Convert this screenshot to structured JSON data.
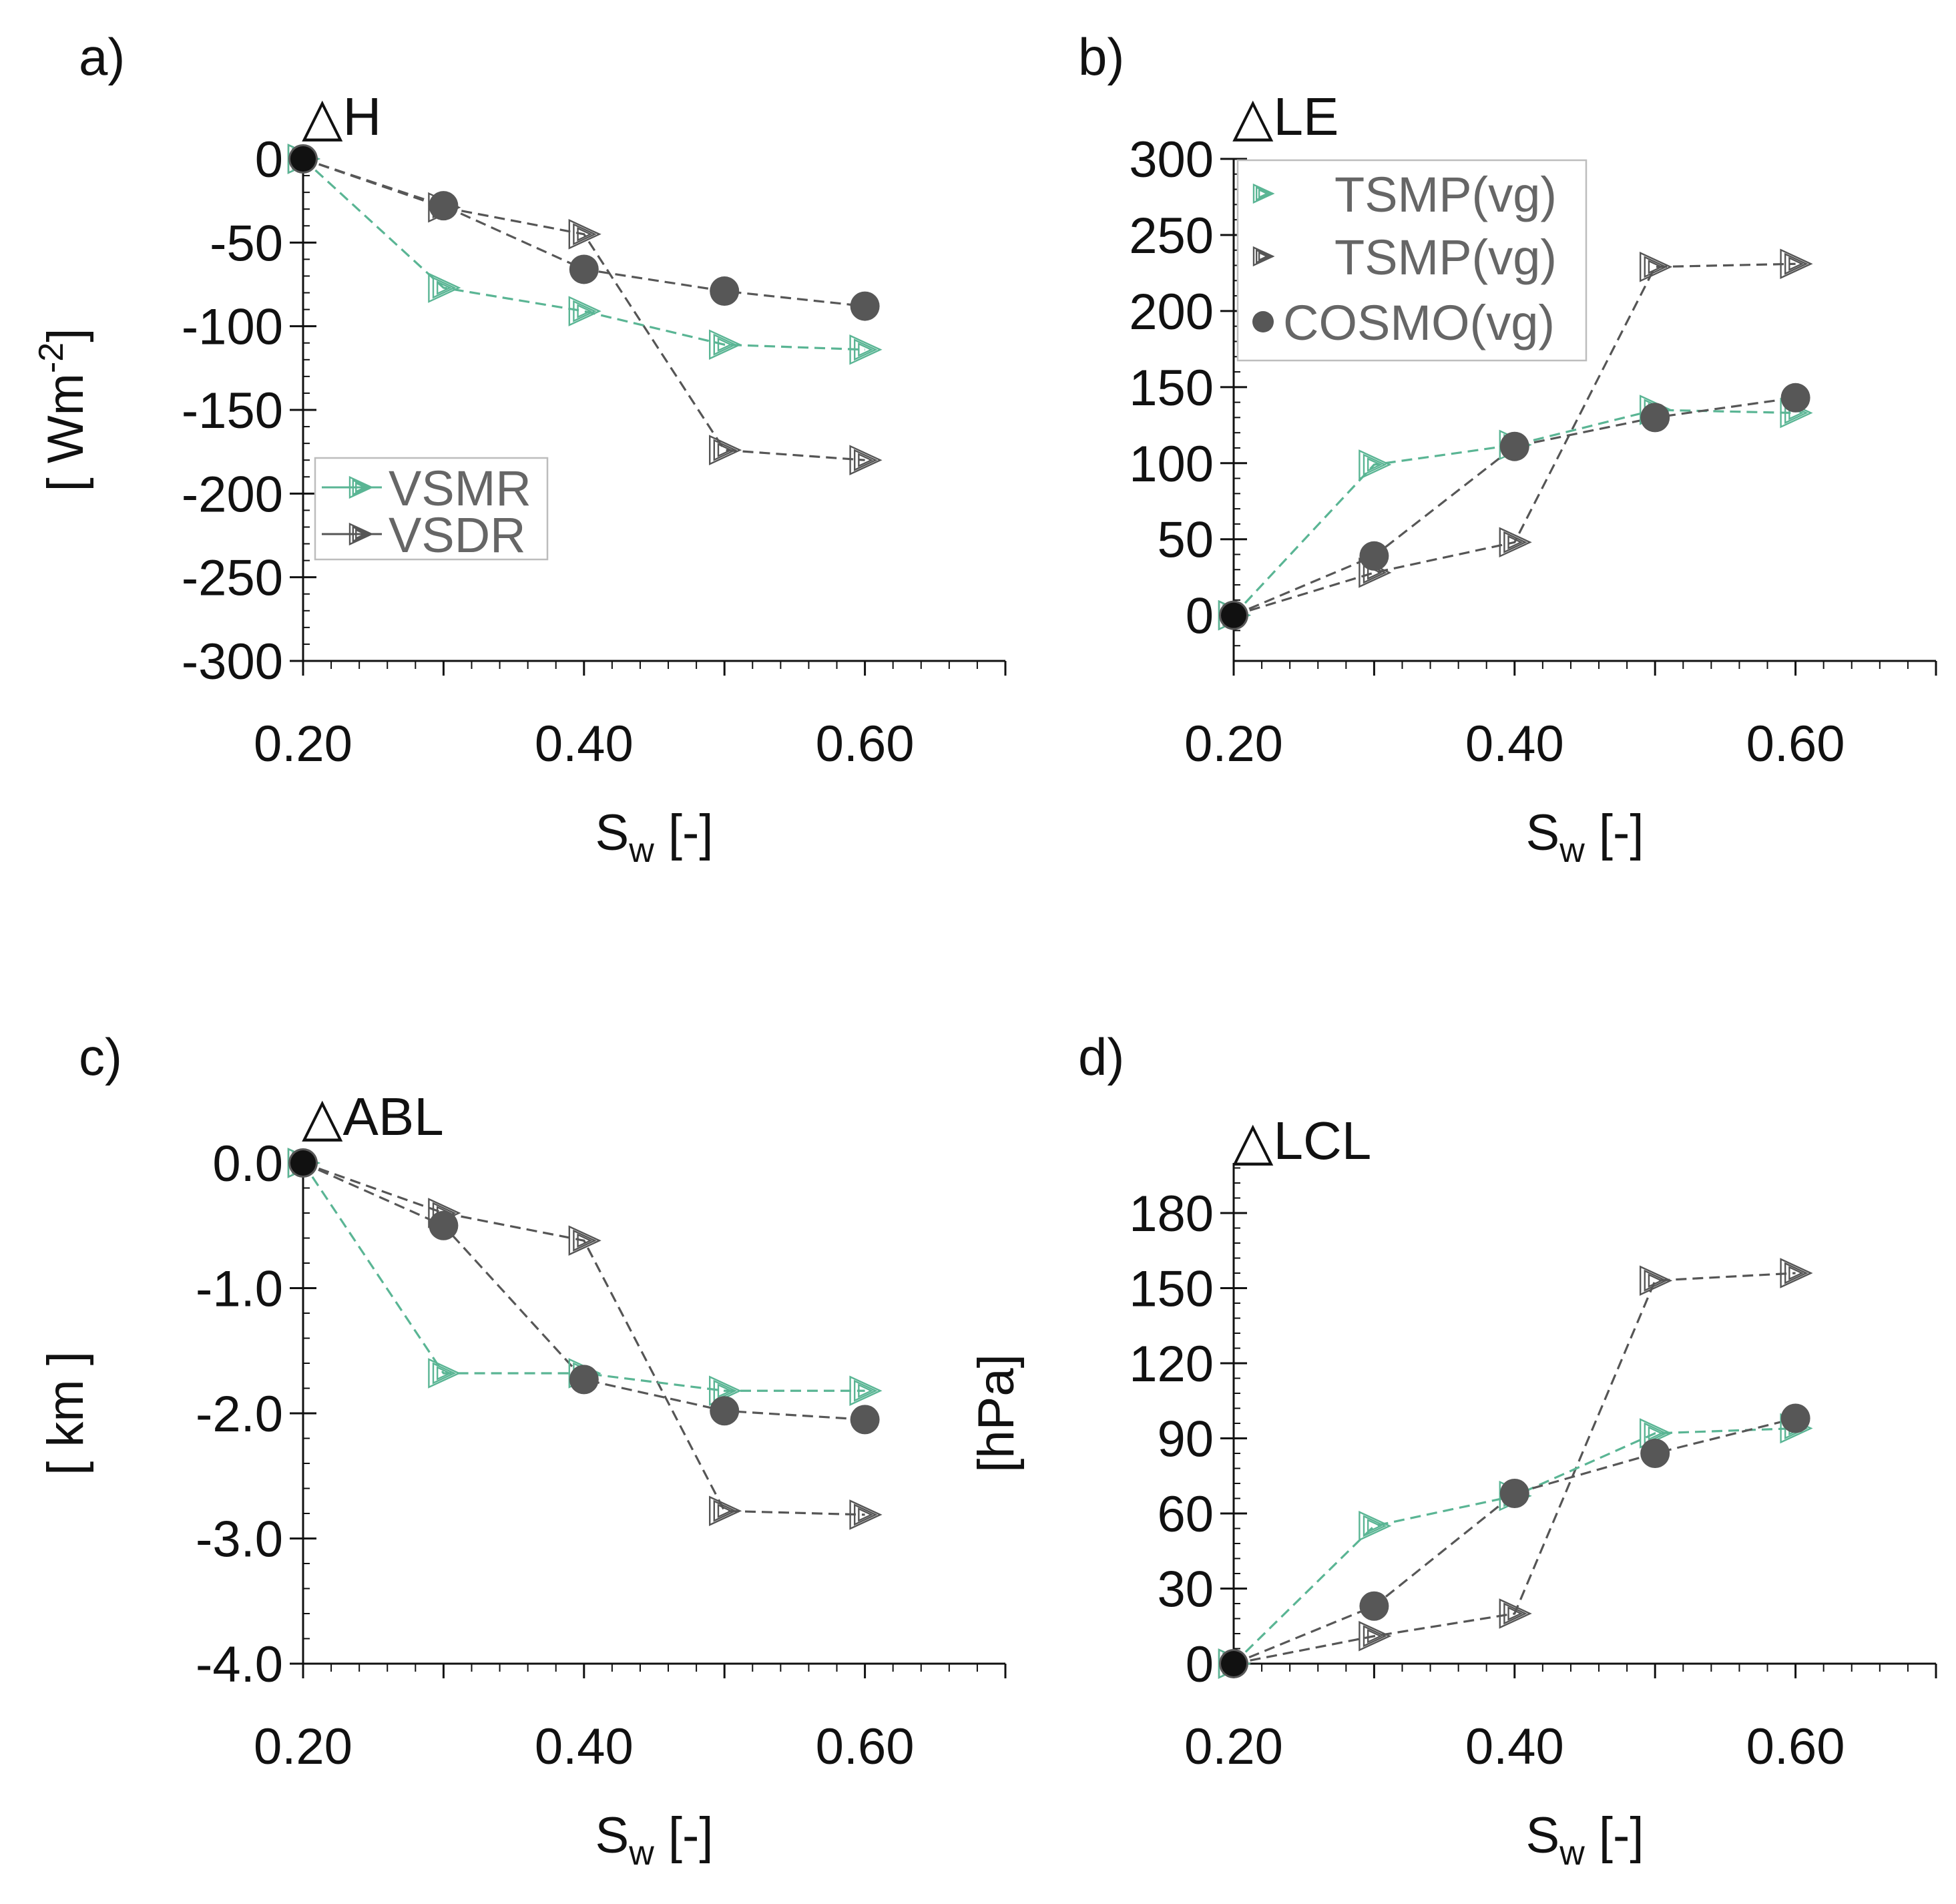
{
  "figure": {
    "colors": {
      "vsmr": "#5ab594",
      "vsdr": "#555555",
      "cosmo": "#575757",
      "axis": "#111111",
      "legend_text": "#666666"
    }
  },
  "chart_data": [
    {
      "panel": "a)",
      "type": "line",
      "title": "△H",
      "xlabel": "S",
      "xlabel_sub": "w",
      "xlabel_tail": " [-]",
      "ylabel": "[ Wm",
      "ylabel_sup": "-2",
      "ylabel_tail": "]",
      "xlim": [
        0.2,
        0.7
      ],
      "ylim": [
        -300,
        0
      ],
      "xticks": [
        0.2,
        0.4,
        0.6
      ],
      "xtick_labels": [
        "0.20",
        "0.40",
        "0.60"
      ],
      "yticks": [
        0,
        -50,
        -100,
        -150,
        -200,
        -250,
        -300
      ],
      "ytick_labels": [
        "0",
        "-50",
        "-100",
        "-150",
        "-200",
        "-250",
        "-300"
      ],
      "legend": {
        "position": "center-left",
        "entries": [
          {
            "series": "VSMR",
            "label": "VSMR"
          },
          {
            "series": "VSDR",
            "label": "VSDR"
          }
        ]
      },
      "series": [
        {
          "name": "VSMR",
          "marker": "triangle",
          "color": "#5ab594",
          "x": [
            0.2,
            0.3,
            0.4,
            0.5,
            0.6
          ],
          "y": [
            0,
            -77,
            -91,
            -111,
            -114
          ]
        },
        {
          "name": "VSDR",
          "marker": "triangle",
          "color": "#555555",
          "x": [
            0.2,
            0.3,
            0.4,
            0.5,
            0.6
          ],
          "y": [
            0,
            -29,
            -45,
            -174,
            -180
          ]
        },
        {
          "name": "COSMO",
          "marker": "circle",
          "color": "#575757",
          "x": [
            0.2,
            0.3,
            0.4,
            0.5,
            0.6
          ],
          "y": [
            0,
            -28,
            -66,
            -79,
            -88
          ]
        }
      ]
    },
    {
      "panel": "b)",
      "type": "line",
      "title": "△LE",
      "xlabel": "S",
      "xlabel_sub": "w",
      "xlabel_tail": " [-]",
      "xlim": [
        0.2,
        0.7
      ],
      "ylim": [
        -30,
        300
      ],
      "xticks": [
        0.2,
        0.4,
        0.6
      ],
      "xtick_labels": [
        "0.20",
        "0.40",
        "0.60"
      ],
      "yticks": [
        0,
        50,
        100,
        150,
        200,
        250,
        300
      ],
      "ytick_labels": [
        "0",
        "50",
        "100",
        "150",
        "200",
        "250",
        "300"
      ],
      "legend": {
        "position": "top-left",
        "entries": [
          {
            "series": "VSMR",
            "label": "TSMP(vg)"
          },
          {
            "series": "VSDR",
            "label": "TSMP(vg)"
          },
          {
            "series": "COSMO",
            "label": "COSMO(vg)"
          }
        ]
      },
      "series": [
        {
          "name": "VSMR",
          "marker": "triangle",
          "color": "#5ab594",
          "x": [
            0.2,
            0.3,
            0.4,
            0.5,
            0.6
          ],
          "y": [
            0,
            99,
            112,
            135,
            133
          ]
        },
        {
          "name": "VSDR",
          "marker": "triangle",
          "color": "#555555",
          "x": [
            0.2,
            0.3,
            0.4,
            0.5,
            0.6
          ],
          "y": [
            0,
            28,
            48,
            229,
            231
          ]
        },
        {
          "name": "COSMO",
          "marker": "circle",
          "color": "#575757",
          "x": [
            0.2,
            0.3,
            0.4,
            0.5,
            0.6
          ],
          "y": [
            0,
            39,
            111,
            130,
            143
          ]
        }
      ]
    },
    {
      "panel": "c)",
      "type": "line",
      "title": "△ABL",
      "xlabel": "S",
      "xlabel_sub": "w",
      "xlabel_tail": " [-]",
      "ylabel": "[ km ]",
      "xlim": [
        0.2,
        0.7
      ],
      "ylim": [
        -4.0,
        0.0
      ],
      "xticks": [
        0.2,
        0.4,
        0.6
      ],
      "xtick_labels": [
        "0.20",
        "0.40",
        "0.60"
      ],
      "yticks": [
        0.0,
        -1.0,
        -2.0,
        -3.0,
        -4.0
      ],
      "ytick_labels": [
        "0.0",
        "-1.0",
        "-2.0",
        "-3.0",
        "-4.0"
      ],
      "series": [
        {
          "name": "VSMR",
          "marker": "triangle",
          "color": "#5ab594",
          "x": [
            0.2,
            0.3,
            0.4,
            0.5,
            0.6
          ],
          "y": [
            0,
            -1.68,
            -1.68,
            -1.82,
            -1.82
          ]
        },
        {
          "name": "VSDR",
          "marker": "triangle",
          "color": "#555555",
          "x": [
            0.2,
            0.3,
            0.4,
            0.5,
            0.6
          ],
          "y": [
            0,
            -0.4,
            -0.62,
            -2.78,
            -2.81
          ]
        },
        {
          "name": "COSMO",
          "marker": "circle",
          "color": "#575757",
          "x": [
            0.2,
            0.3,
            0.4,
            0.5,
            0.6
          ],
          "y": [
            0,
            -0.5,
            -1.73,
            -1.98,
            -2.05
          ]
        }
      ]
    },
    {
      "panel": "d)",
      "type": "line",
      "title": "△LCL",
      "xlabel": "S",
      "xlabel_sub": "w",
      "xlabel_tail": " [-]",
      "ylabel": "[hPa]",
      "xlim": [
        0.2,
        0.7
      ],
      "ylim": [
        0,
        200
      ],
      "xticks": [
        0.2,
        0.4,
        0.6
      ],
      "xtick_labels": [
        "0.20",
        "0.40",
        "0.60"
      ],
      "yticks": [
        0,
        30,
        60,
        90,
        120,
        150,
        180
      ],
      "ytick_labels": [
        "0",
        "30",
        "60",
        "90",
        "120",
        "150",
        "180"
      ],
      "series": [
        {
          "name": "VSMR",
          "marker": "triangle",
          "color": "#5ab594",
          "x": [
            0.2,
            0.3,
            0.4,
            0.5,
            0.6
          ],
          "y": [
            0,
            55,
            67,
            92,
            94
          ]
        },
        {
          "name": "VSDR",
          "marker": "triangle",
          "color": "#555555",
          "x": [
            0.2,
            0.3,
            0.4,
            0.5,
            0.6
          ],
          "y": [
            0,
            11,
            20,
            153,
            156
          ]
        },
        {
          "name": "COSMO",
          "marker": "circle",
          "color": "#575757",
          "x": [
            0.2,
            0.3,
            0.4,
            0.5,
            0.6
          ],
          "y": [
            0,
            23,
            68,
            84,
            98
          ]
        }
      ]
    }
  ]
}
